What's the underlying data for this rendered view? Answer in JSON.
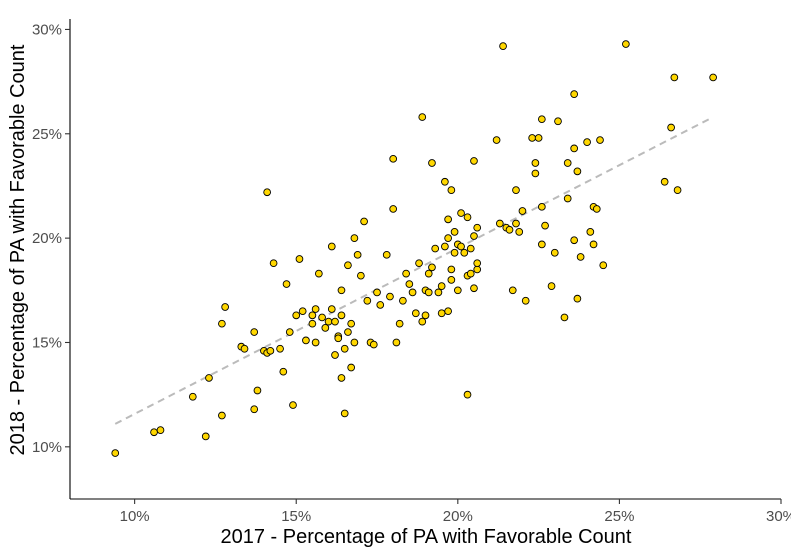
{
  "chart_data": {
    "type": "scatter",
    "xlabel": "2017 - Percentage of PA with Favorable Count",
    "ylabel": "2018 - Percentage of PA with Favorable Count",
    "xlim": [
      0.08,
      0.3
    ],
    "ylim": [
      0.075,
      0.305
    ],
    "x_ticks": [
      {
        "value": 0.1,
        "label": "10%"
      },
      {
        "value": 0.15,
        "label": "15%"
      },
      {
        "value": 0.2,
        "label": "20%"
      },
      {
        "value": 0.25,
        "label": "25%"
      },
      {
        "value": 0.3,
        "label": "30%"
      }
    ],
    "y_ticks": [
      {
        "value": 0.1,
        "label": "10%"
      },
      {
        "value": 0.15,
        "label": "15%"
      },
      {
        "value": 0.2,
        "label": "20%"
      },
      {
        "value": 0.25,
        "label": "25%"
      },
      {
        "value": 0.3,
        "label": "30%"
      }
    ],
    "grid": false,
    "point_color": "#FFD700",
    "trend_color": "#BBBBBB",
    "trend_line": {
      "x": [
        0.094,
        0.279
      ],
      "y": [
        0.111,
        0.258
      ]
    },
    "points": [
      [
        0.094,
        0.097
      ],
      [
        0.106,
        0.107
      ],
      [
        0.108,
        0.108
      ],
      [
        0.118,
        0.124
      ],
      [
        0.122,
        0.105
      ],
      [
        0.123,
        0.133
      ],
      [
        0.127,
        0.115
      ],
      [
        0.127,
        0.159
      ],
      [
        0.128,
        0.167
      ],
      [
        0.133,
        0.148
      ],
      [
        0.134,
        0.147
      ],
      [
        0.137,
        0.155
      ],
      [
        0.137,
        0.118
      ],
      [
        0.138,
        0.127
      ],
      [
        0.14,
        0.146
      ],
      [
        0.141,
        0.145
      ],
      [
        0.141,
        0.222
      ],
      [
        0.142,
        0.146
      ],
      [
        0.143,
        0.188
      ],
      [
        0.145,
        0.147
      ],
      [
        0.146,
        0.136
      ],
      [
        0.147,
        0.178
      ],
      [
        0.148,
        0.155
      ],
      [
        0.149,
        0.12
      ],
      [
        0.15,
        0.163
      ],
      [
        0.151,
        0.19
      ],
      [
        0.152,
        0.165
      ],
      [
        0.153,
        0.151
      ],
      [
        0.155,
        0.159
      ],
      [
        0.155,
        0.163
      ],
      [
        0.156,
        0.166
      ],
      [
        0.156,
        0.15
      ],
      [
        0.157,
        0.183
      ],
      [
        0.158,
        0.162
      ],
      [
        0.159,
        0.157
      ],
      [
        0.16,
        0.16
      ],
      [
        0.161,
        0.166
      ],
      [
        0.161,
        0.196
      ],
      [
        0.162,
        0.144
      ],
      [
        0.162,
        0.16
      ],
      [
        0.163,
        0.153
      ],
      [
        0.163,
        0.152
      ],
      [
        0.164,
        0.163
      ],
      [
        0.164,
        0.133
      ],
      [
        0.164,
        0.175
      ],
      [
        0.165,
        0.147
      ],
      [
        0.165,
        0.116
      ],
      [
        0.166,
        0.187
      ],
      [
        0.166,
        0.155
      ],
      [
        0.167,
        0.138
      ],
      [
        0.167,
        0.159
      ],
      [
        0.168,
        0.15
      ],
      [
        0.168,
        0.2
      ],
      [
        0.169,
        0.192
      ],
      [
        0.17,
        0.182
      ],
      [
        0.171,
        0.208
      ],
      [
        0.172,
        0.17
      ],
      [
        0.173,
        0.15
      ],
      [
        0.174,
        0.149
      ],
      [
        0.175,
        0.174
      ],
      [
        0.176,
        0.168
      ],
      [
        0.178,
        0.192
      ],
      [
        0.179,
        0.172
      ],
      [
        0.18,
        0.214
      ],
      [
        0.18,
        0.238
      ],
      [
        0.181,
        0.15
      ],
      [
        0.182,
        0.159
      ],
      [
        0.183,
        0.17
      ],
      [
        0.184,
        0.183
      ],
      [
        0.185,
        0.178
      ],
      [
        0.186,
        0.174
      ],
      [
        0.187,
        0.164
      ],
      [
        0.188,
        0.188
      ],
      [
        0.189,
        0.258
      ],
      [
        0.189,
        0.16
      ],
      [
        0.19,
        0.175
      ],
      [
        0.19,
        0.163
      ],
      [
        0.191,
        0.174
      ],
      [
        0.191,
        0.183
      ],
      [
        0.192,
        0.236
      ],
      [
        0.192,
        0.186
      ],
      [
        0.193,
        0.195
      ],
      [
        0.194,
        0.174
      ],
      [
        0.195,
        0.177
      ],
      [
        0.195,
        0.164
      ],
      [
        0.196,
        0.196
      ],
      [
        0.196,
        0.227
      ],
      [
        0.197,
        0.209
      ],
      [
        0.197,
        0.165
      ],
      [
        0.197,
        0.2
      ],
      [
        0.198,
        0.18
      ],
      [
        0.198,
        0.223
      ],
      [
        0.198,
        0.185
      ],
      [
        0.199,
        0.193
      ],
      [
        0.199,
        0.203
      ],
      [
        0.2,
        0.175
      ],
      [
        0.2,
        0.197
      ],
      [
        0.201,
        0.196
      ],
      [
        0.201,
        0.212
      ],
      [
        0.202,
        0.193
      ],
      [
        0.203,
        0.182
      ],
      [
        0.203,
        0.125
      ],
      [
        0.203,
        0.21
      ],
      [
        0.204,
        0.195
      ],
      [
        0.204,
        0.183
      ],
      [
        0.205,
        0.176
      ],
      [
        0.205,
        0.237
      ],
      [
        0.205,
        0.201
      ],
      [
        0.206,
        0.185
      ],
      [
        0.206,
        0.188
      ],
      [
        0.206,
        0.205
      ],
      [
        0.212,
        0.247
      ],
      [
        0.213,
        0.207
      ],
      [
        0.214,
        0.292
      ],
      [
        0.215,
        0.205
      ],
      [
        0.216,
        0.204
      ],
      [
        0.217,
        0.175
      ],
      [
        0.218,
        0.223
      ],
      [
        0.218,
        0.207
      ],
      [
        0.219,
        0.203
      ],
      [
        0.22,
        0.213
      ],
      [
        0.221,
        0.17
      ],
      [
        0.223,
        0.248
      ],
      [
        0.224,
        0.231
      ],
      [
        0.224,
        0.236
      ],
      [
        0.225,
        0.248
      ],
      [
        0.226,
        0.197
      ],
      [
        0.226,
        0.215
      ],
      [
        0.226,
        0.257
      ],
      [
        0.227,
        0.206
      ],
      [
        0.229,
        0.177
      ],
      [
        0.23,
        0.193
      ],
      [
        0.231,
        0.256
      ],
      [
        0.233,
        0.162
      ],
      [
        0.234,
        0.236
      ],
      [
        0.234,
        0.219
      ],
      [
        0.236,
        0.199
      ],
      [
        0.236,
        0.269
      ],
      [
        0.236,
        0.243
      ],
      [
        0.237,
        0.171
      ],
      [
        0.237,
        0.232
      ],
      [
        0.238,
        0.191
      ],
      [
        0.24,
        0.246
      ],
      [
        0.241,
        0.203
      ],
      [
        0.242,
        0.215
      ],
      [
        0.242,
        0.197
      ],
      [
        0.243,
        0.214
      ],
      [
        0.244,
        0.247
      ],
      [
        0.245,
        0.187
      ],
      [
        0.252,
        0.293
      ],
      [
        0.264,
        0.227
      ],
      [
        0.266,
        0.253
      ],
      [
        0.267,
        0.277
      ],
      [
        0.268,
        0.223
      ],
      [
        0.279,
        0.277
      ]
    ]
  }
}
